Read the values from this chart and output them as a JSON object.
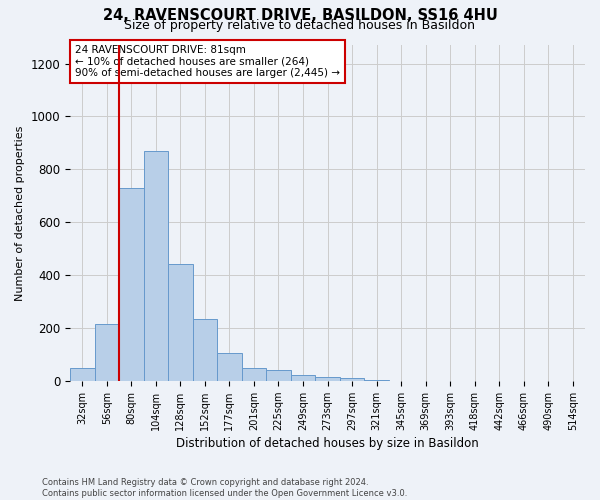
{
  "title_line1": "24, RAVENSCOURT DRIVE, BASILDON, SS16 4HU",
  "title_line2": "Size of property relative to detached houses in Basildon",
  "xlabel": "Distribution of detached houses by size in Basildon",
  "ylabel": "Number of detached properties",
  "footer_line1": "Contains HM Land Registry data © Crown copyright and database right 2024.",
  "footer_line2": "Contains public sector information licensed under the Open Government Licence v3.0.",
  "bar_labels": [
    "32sqm",
    "56sqm",
    "80sqm",
    "104sqm",
    "128sqm",
    "152sqm",
    "177sqm",
    "201sqm",
    "225sqm",
    "249sqm",
    "273sqm",
    "297sqm",
    "321sqm",
    "345sqm",
    "369sqm",
    "393sqm",
    "418sqm",
    "442sqm",
    "466sqm",
    "490sqm",
    "514sqm"
  ],
  "bar_values": [
    50,
    215,
    730,
    870,
    440,
    235,
    105,
    47,
    40,
    22,
    15,
    10,
    5,
    0,
    0,
    0,
    0,
    0,
    0,
    0,
    0
  ],
  "bar_color": "#b8cfe8",
  "bar_edge_color": "#6699cc",
  "vline_index": 2,
  "vline_color": "#cc0000",
  "annotation_text": "24 RAVENSCOURT DRIVE: 81sqm\n← 10% of detached houses are smaller (264)\n90% of semi-detached houses are larger (2,445) →",
  "annotation_box_edgecolor": "#cc0000",
  "annotation_box_facecolor": "#ffffff",
  "ylim": [
    0,
    1270
  ],
  "yticks": [
    0,
    200,
    400,
    600,
    800,
    1000,
    1200
  ],
  "grid_color": "#cccccc",
  "background_color": "#eef2f8",
  "title_fontsize": 10.5,
  "subtitle_fontsize": 9
}
